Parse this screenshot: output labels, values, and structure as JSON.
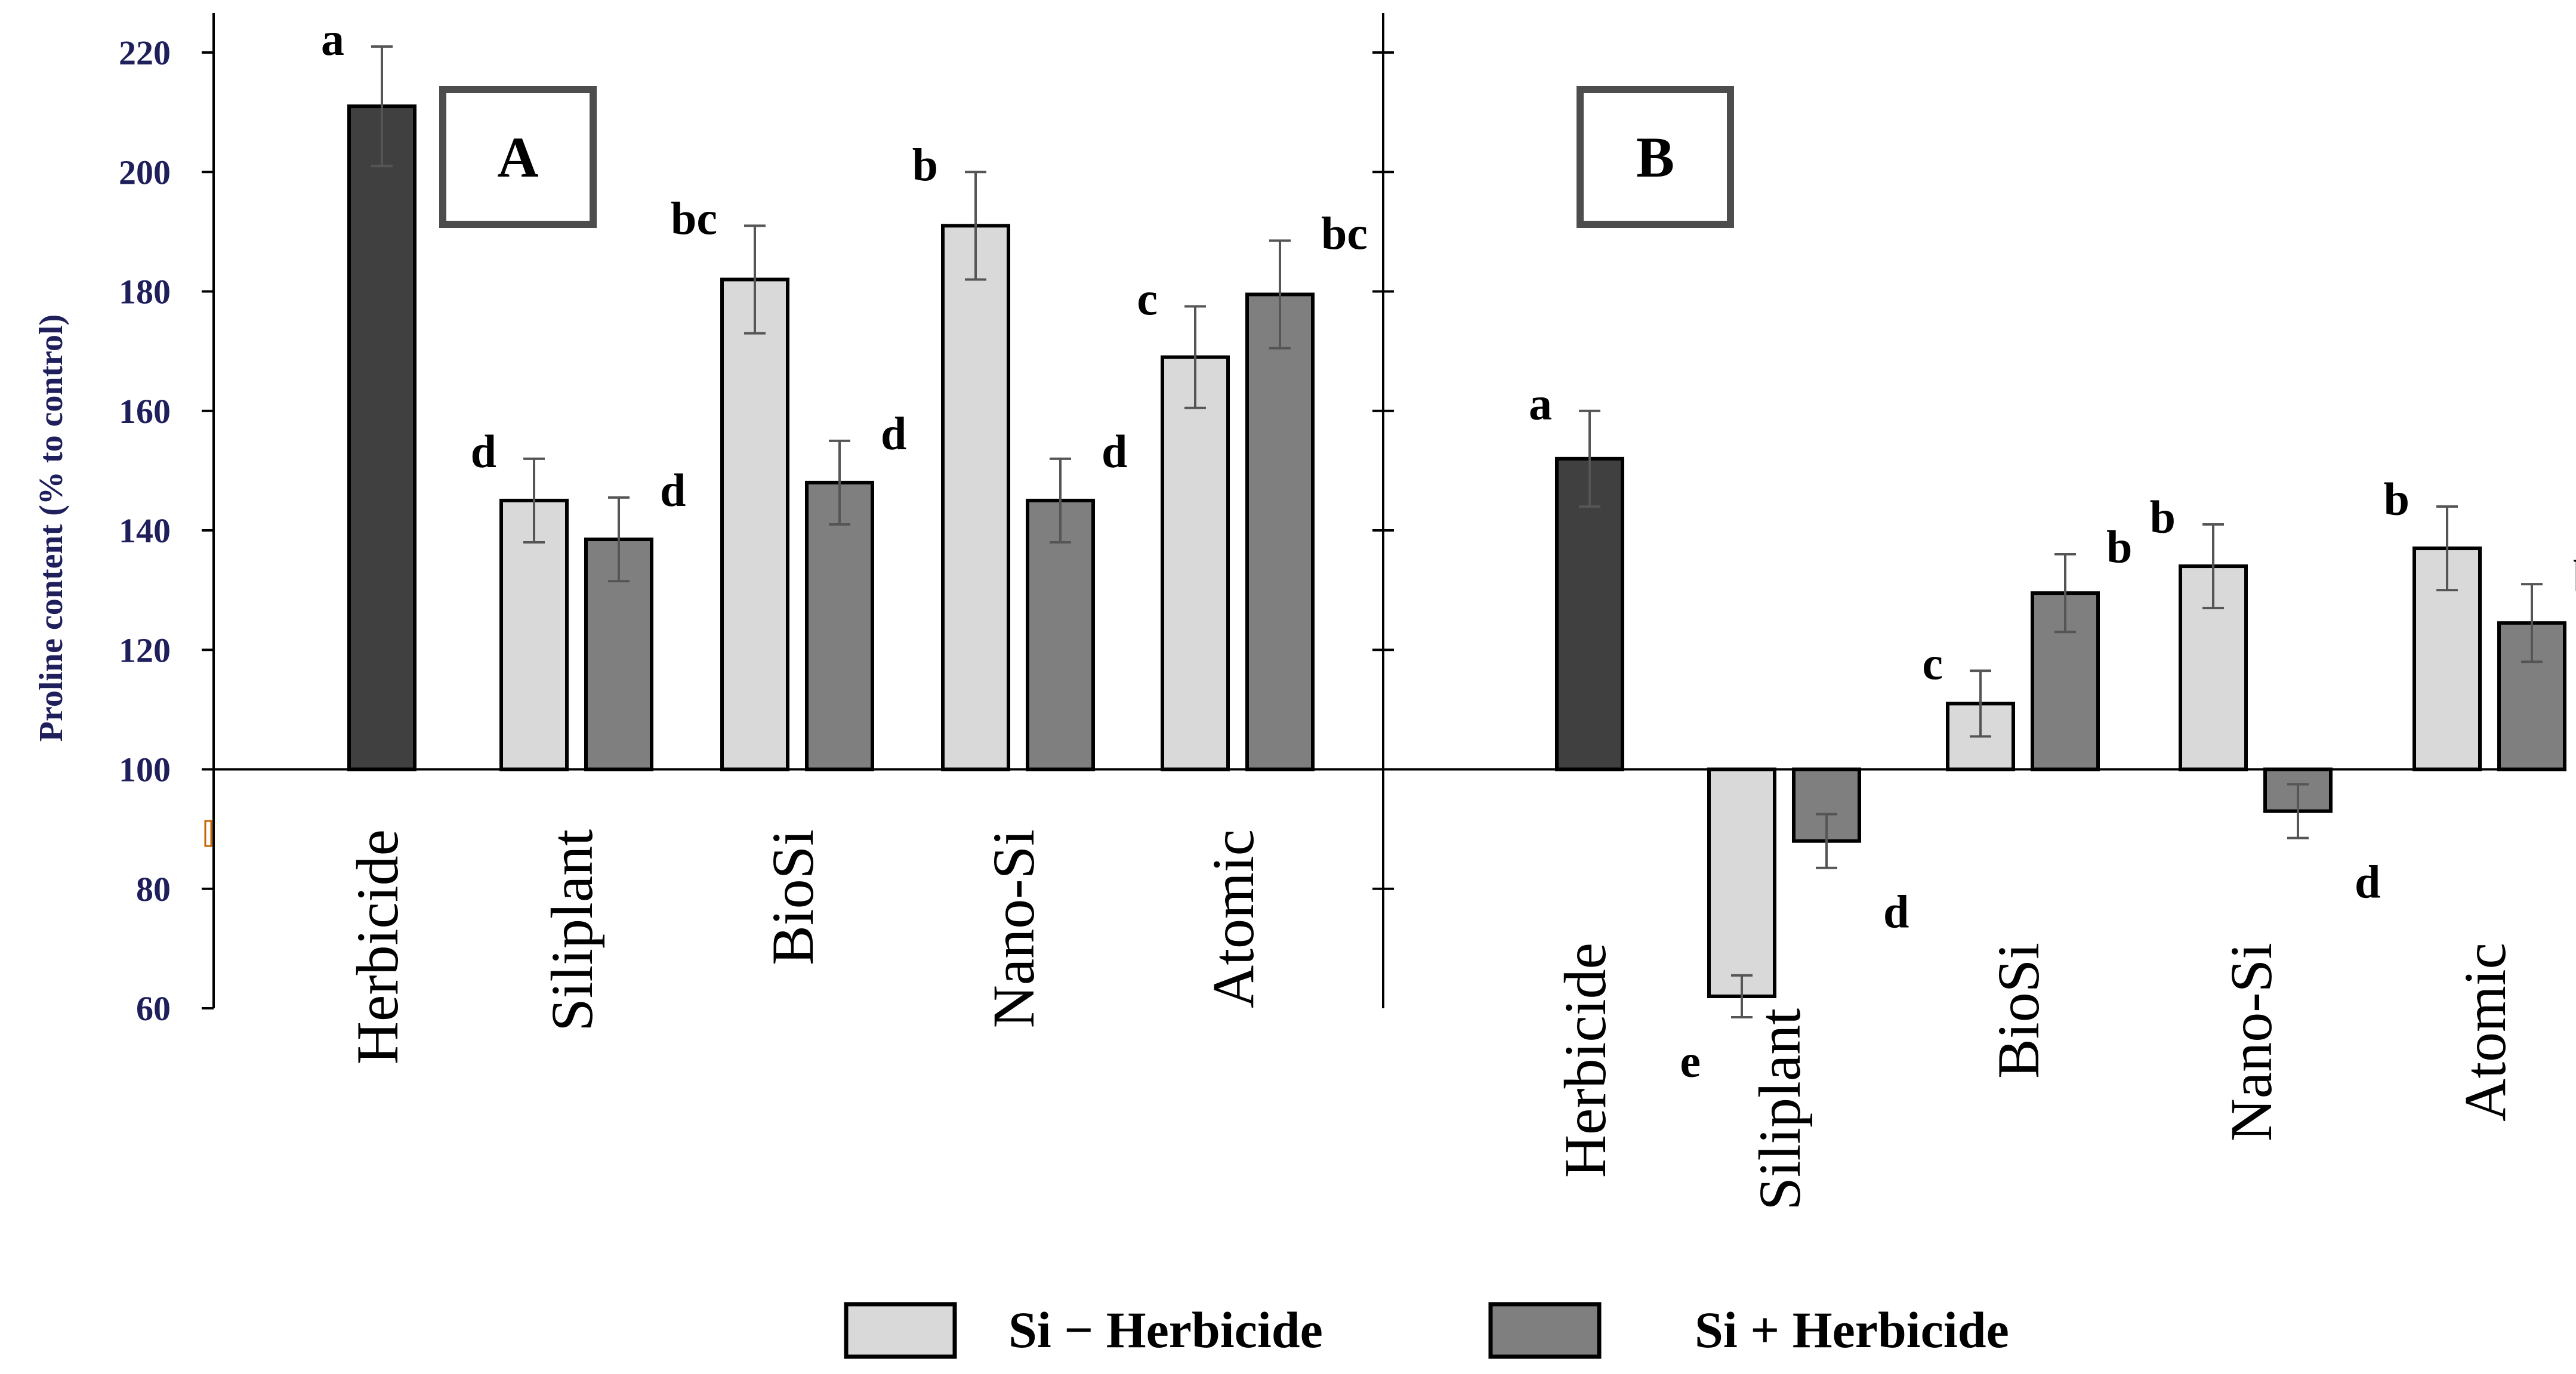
{
  "chart_data": {
    "type": "bar",
    "ylabel": "Proline content (% to control)",
    "ylim": [
      60,
      220
    ],
    "yticks": [
      60,
      80,
      100,
      120,
      140,
      160,
      180,
      200,
      220
    ],
    "baseline": 100,
    "legend": [
      {
        "name": "Si − Herbicide",
        "color": "#d9d9d9"
      },
      {
        "name": "Si + Herbicide",
        "color": "#7f7f7f"
      }
    ],
    "panels": [
      {
        "label": "A",
        "categories": [
          "Herbicide",
          "Siliplant",
          "BioSi",
          "Nano-Si",
          "Atomic"
        ],
        "herbicide_only": {
          "value": 211,
          "err": 10,
          "letter": "a",
          "color": "#404040"
        },
        "series": [
          {
            "name": "Si − Herbicide",
            "values": [
              null,
              145,
              182,
              191,
              169
            ],
            "err": [
              null,
              7,
              9,
              9,
              8.5
            ],
            "letters": [
              null,
              "d",
              "bc",
              "b",
              "c"
            ]
          },
          {
            "name": "Si + Herbicide",
            "values": [
              null,
              138.5,
              148,
              145,
              179.5
            ],
            "err": [
              null,
              7,
              7,
              7,
              9
            ],
            "letters": [
              null,
              "d",
              "d",
              "d",
              "bc"
            ]
          }
        ]
      },
      {
        "label": "B",
        "categories": [
          "Herbicide",
          "Siliplant",
          "BioSi",
          "Nano-Si",
          "Atomic"
        ],
        "herbicide_only": {
          "value": 152,
          "err": 8,
          "letter": "a",
          "color": "#404040"
        },
        "series": [
          {
            "name": "Si − Herbicide",
            "values": [
              null,
              62,
              111,
              134,
              137
            ],
            "err": [
              null,
              3.5,
              5.5,
              7,
              7
            ],
            "letters": [
              null,
              "e",
              "c",
              "b",
              "b"
            ]
          },
          {
            "name": "Si + Herbicide",
            "values": [
              null,
              88,
              129.5,
              93,
              124.5
            ],
            "err": [
              null,
              4.5,
              6.5,
              4.5,
              6.5
            ],
            "letters": [
              null,
              "d",
              "b",
              "d",
              "b"
            ]
          }
        ]
      }
    ]
  }
}
